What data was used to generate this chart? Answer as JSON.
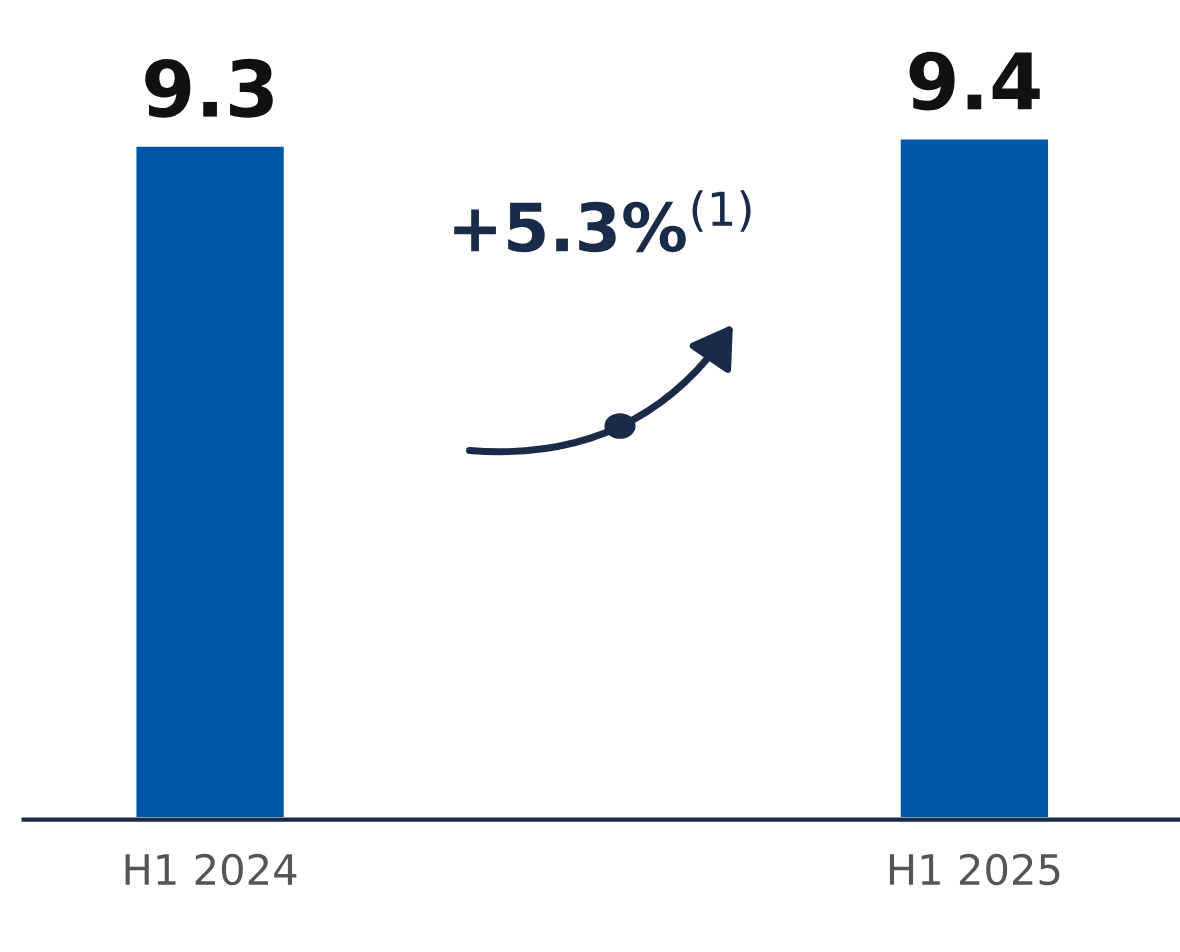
{
  "chart_data": {
    "type": "bar",
    "categories": [
      "H1 2024",
      "H1 2025"
    ],
    "values": [
      9.3,
      9.4
    ],
    "color": "#0057a8",
    "data_labels": true,
    "annotations": [
      "+5.3%$^{(1)}$"
    ]
  }
}
